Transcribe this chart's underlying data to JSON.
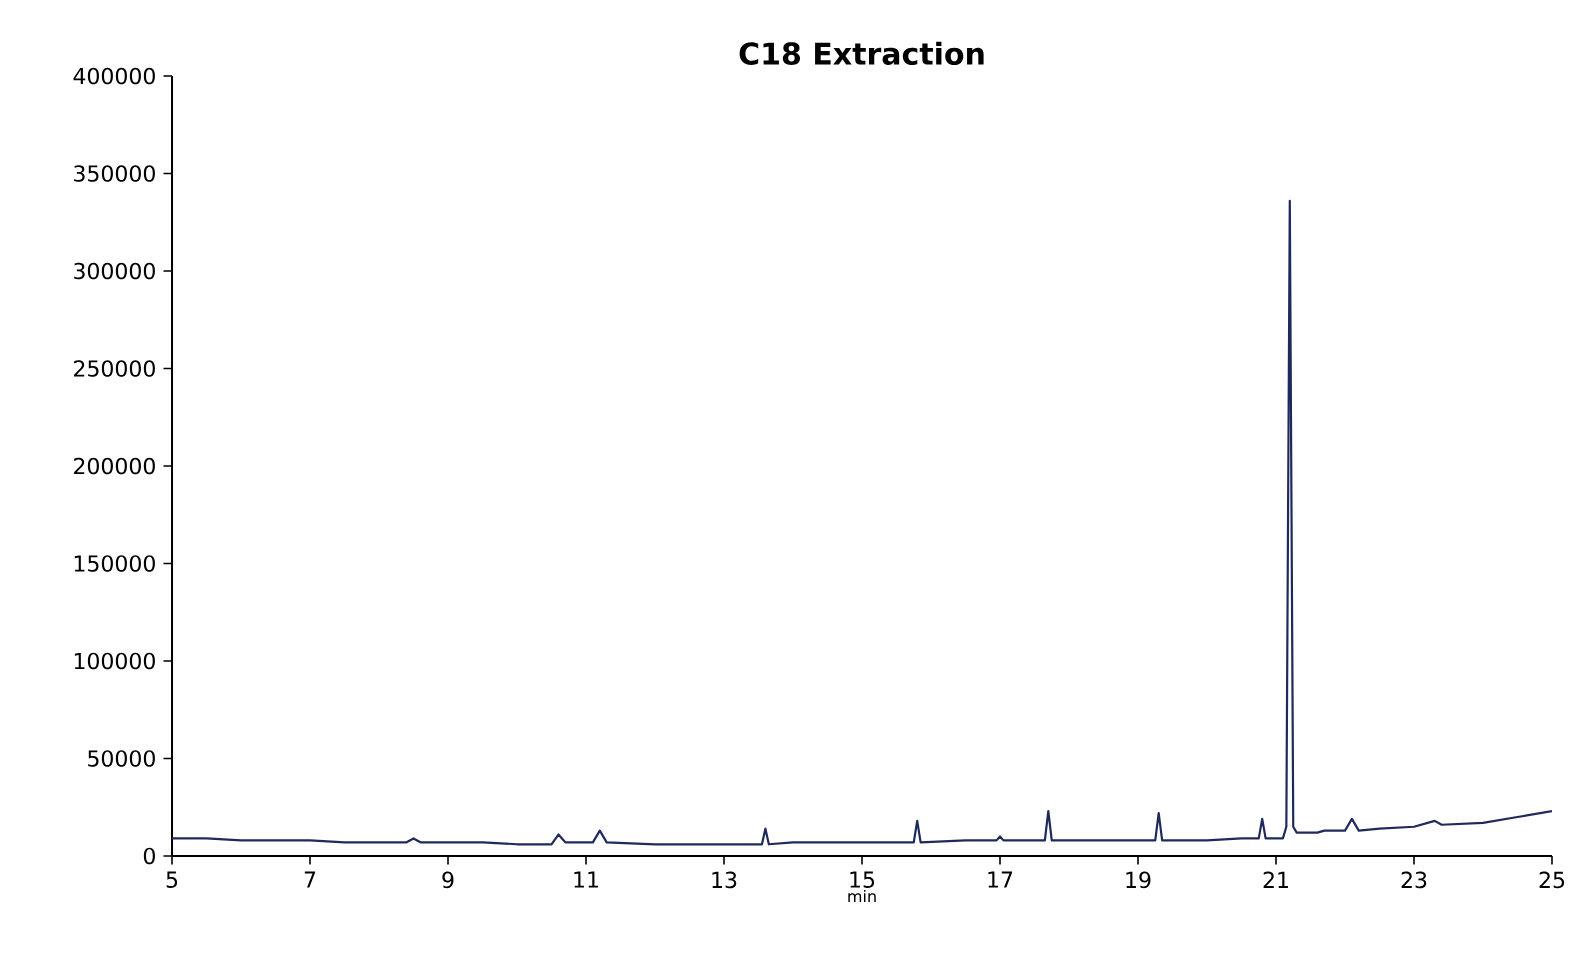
{
  "chart_data": {
    "type": "line",
    "title": "C18 Extraction",
    "xlabel": "min",
    "x": [
      5,
      5.5,
      6,
      6.5,
      7,
      7.5,
      8,
      8.4,
      8.5,
      8.6,
      9,
      9.5,
      10,
      10.5,
      10.6,
      10.7,
      11.1,
      11.2,
      11.3,
      12,
      12.5,
      13,
      13.55,
      13.6,
      13.65,
      14,
      14.5,
      15,
      15.5,
      15.75,
      15.8,
      15.85,
      16.5,
      16.95,
      17,
      17.05,
      17.65,
      17.7,
      17.75,
      18.5,
      19.25,
      19.3,
      19.35,
      20,
      20.5,
      20.75,
      20.8,
      20.85,
      21.1,
      21.15,
      21.2,
      21.25,
      21.3,
      21.6,
      21.7,
      22,
      22.1,
      22.2,
      22.5,
      23,
      23.3,
      23.4,
      24,
      24.5,
      25
    ],
    "series": [
      {
        "color": "#1f2a5c",
        "values": [
          9000,
          9000,
          8000,
          8000,
          8000,
          7000,
          7000,
          7000,
          9000,
          7000,
          7000,
          7000,
          6000,
          6000,
          11000,
          7000,
          7000,
          13000,
          7000,
          6000,
          6000,
          6000,
          6000,
          14000,
          6000,
          7000,
          7000,
          7000,
          7000,
          7000,
          18000,
          7000,
          8000,
          8000,
          10000,
          8000,
          8000,
          23000,
          8000,
          8000,
          8000,
          22000,
          8000,
          8000,
          9000,
          9000,
          19000,
          9000,
          9000,
          15000,
          336000,
          15000,
          12000,
          12000,
          13000,
          13000,
          19000,
          13000,
          14000,
          15000,
          18000,
          16000,
          17000,
          20000,
          23000
        ]
      }
    ],
    "xlim": [
      5,
      25
    ],
    "ylim": [
      0,
      400000
    ],
    "xticks": [
      5,
      7,
      9,
      11,
      13,
      15,
      17,
      19,
      21,
      23,
      25
    ],
    "yticks": [
      0,
      50000,
      100000,
      150000,
      200000,
      250000,
      300000,
      350000,
      400000
    ],
    "marker": "none",
    "line_style": "solid"
  }
}
